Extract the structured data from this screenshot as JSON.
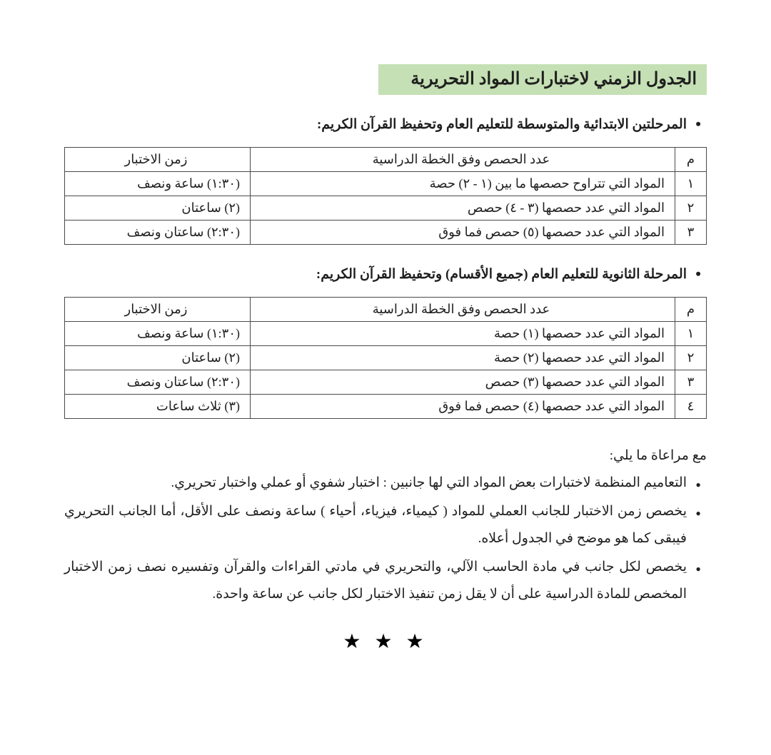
{
  "colors": {
    "title_bg": "#c5e0b4",
    "text": "#1f1f1f",
    "border": "#4a4a4a",
    "page_bg": "#ffffff"
  },
  "title": "الجدول الزمني لاختبارات المواد التحريرية",
  "section1": {
    "heading": "المرحلتين الابتدائية والمتوسطة للتعليم العام وتحفيظ القرآن الكريم:",
    "headers": {
      "num": "م",
      "desc": "عدد الحصص وفق الخطة الدراسية",
      "time": "زمن الاختبار"
    },
    "rows": [
      {
        "num": "١",
        "desc": "المواد التي تتراوح حصصها ما بين (١  -   ٢) حصة",
        "time": "(١:٣٠) ساعة ونصف"
      },
      {
        "num": "٢",
        "desc": "المواد التي عدد حصصها (٣  -  ٤) حصص",
        "time": "(٢) ساعتان"
      },
      {
        "num": "٣",
        "desc": "المواد التي عدد حصصها (٥) حصص فما فوق",
        "time": "(٢:٣٠) ساعتان ونصف"
      }
    ]
  },
  "section2": {
    "heading": "المرحلة الثانوية للتعليم العام (جميع الأقسام) وتحفيظ القرآن الكريم:",
    "headers": {
      "num": "م",
      "desc": "عدد الحصص وفق الخطة الدراسية",
      "time": "زمن الاختبار"
    },
    "rows": [
      {
        "num": "١",
        "desc": "المواد التي عدد حصصها (١) حصة",
        "time": "(١:٣٠) ساعة ونصف"
      },
      {
        "num": "٢",
        "desc": "المواد التي عدد حصصها (٢) حصة",
        "time": "(٢) ساعتان"
      },
      {
        "num": "٣",
        "desc": "المواد التي عدد حصصها (٣) حصص",
        "time": "(٢:٣٠) ساعتان ونصف"
      },
      {
        "num": "٤",
        "desc": "المواد التي عدد حصصها (٤) حصص فما فوق",
        "time": "(٣) ثلاث ساعات"
      }
    ]
  },
  "notes_intro": "مع مراعاة ما يلي:",
  "notes": [
    "التعاميم المنظمة لاختبارات بعض المواد التي لها جانبين : اختبار شفوي أو عملي واختبار تحريري.",
    "يخصص زمن الاختبار للجانب العملي للمواد ( كيمياء، فيزياء، أحياء ) ساعة ونصف على الأقل، أما الجانب التحريري فيبقى كما هو موضح في الجدول أعلاه.",
    "يخصص لكل جانب في مادة الحاسب الآلي، والتحريري في مادتي القراءات والقرآن وتفسيره نصف زمن الاختبار المخصص للمادة الدراسية على أن لا يقل زمن تنفيذ الاختبار لكل جانب عن ساعة واحدة."
  ],
  "stars": "★ ★ ★"
}
